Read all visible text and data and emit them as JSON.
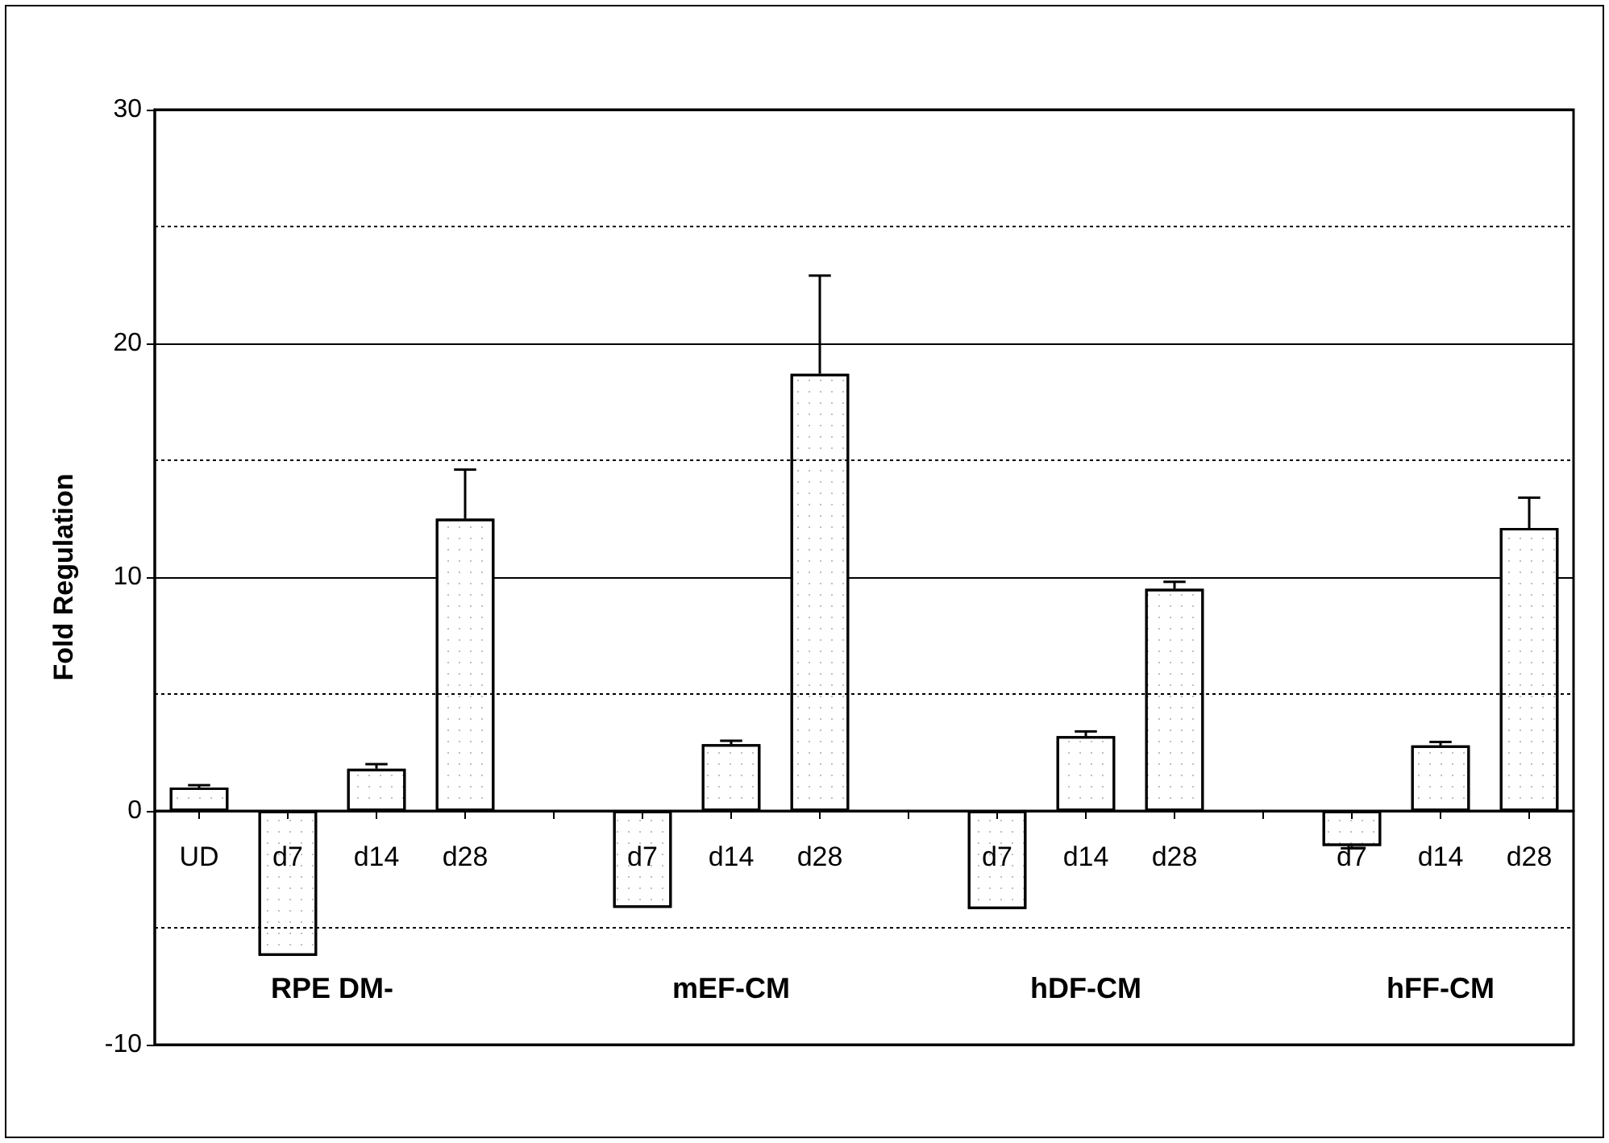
{
  "chart_data": {
    "type": "bar",
    "ylabel": "Fold Regulation",
    "categories": [
      "UD",
      "d7",
      "d14",
      "d28",
      null,
      "d7",
      "d14",
      "d28",
      null,
      "d7",
      "d14",
      "d28",
      null,
      "d7",
      "d14",
      "d28"
    ],
    "values": [
      1.0,
      -6.2,
      1.8,
      12.5,
      null,
      -4.15,
      2.85,
      18.7,
      null,
      -4.2,
      3.2,
      9.5,
      null,
      -1.5,
      2.8,
      12.1
    ],
    "errors": [
      [
        1.0,
        1.1
      ],
      null,
      [
        1.8,
        2.0
      ],
      [
        12.5,
        14.6
      ],
      null,
      null,
      [
        2.85,
        3.0
      ],
      [
        18.7,
        22.9
      ],
      null,
      null,
      [
        3.2,
        3.4
      ],
      [
        9.5,
        9.8
      ],
      null,
      [
        -1.6,
        -1.5
      ],
      [
        2.8,
        2.95
      ],
      [
        12.1,
        13.4
      ]
    ],
    "color": "#ffffff",
    "ylim": [
      -10,
      30
    ],
    "yticks": [
      -10,
      {
        "value": -5,
        "label": null
      },
      0,
      {
        "value": 5,
        "label": null
      },
      10,
      {
        "value": 15,
        "label": null
      },
      20,
      {
        "value": 25,
        "label": null
      },
      30
    ],
    "grid": "y",
    "annotations": [
      "RPE DM-",
      "mEF-CM",
      "hDF-CM",
      "hFF-CM"
    ]
  }
}
